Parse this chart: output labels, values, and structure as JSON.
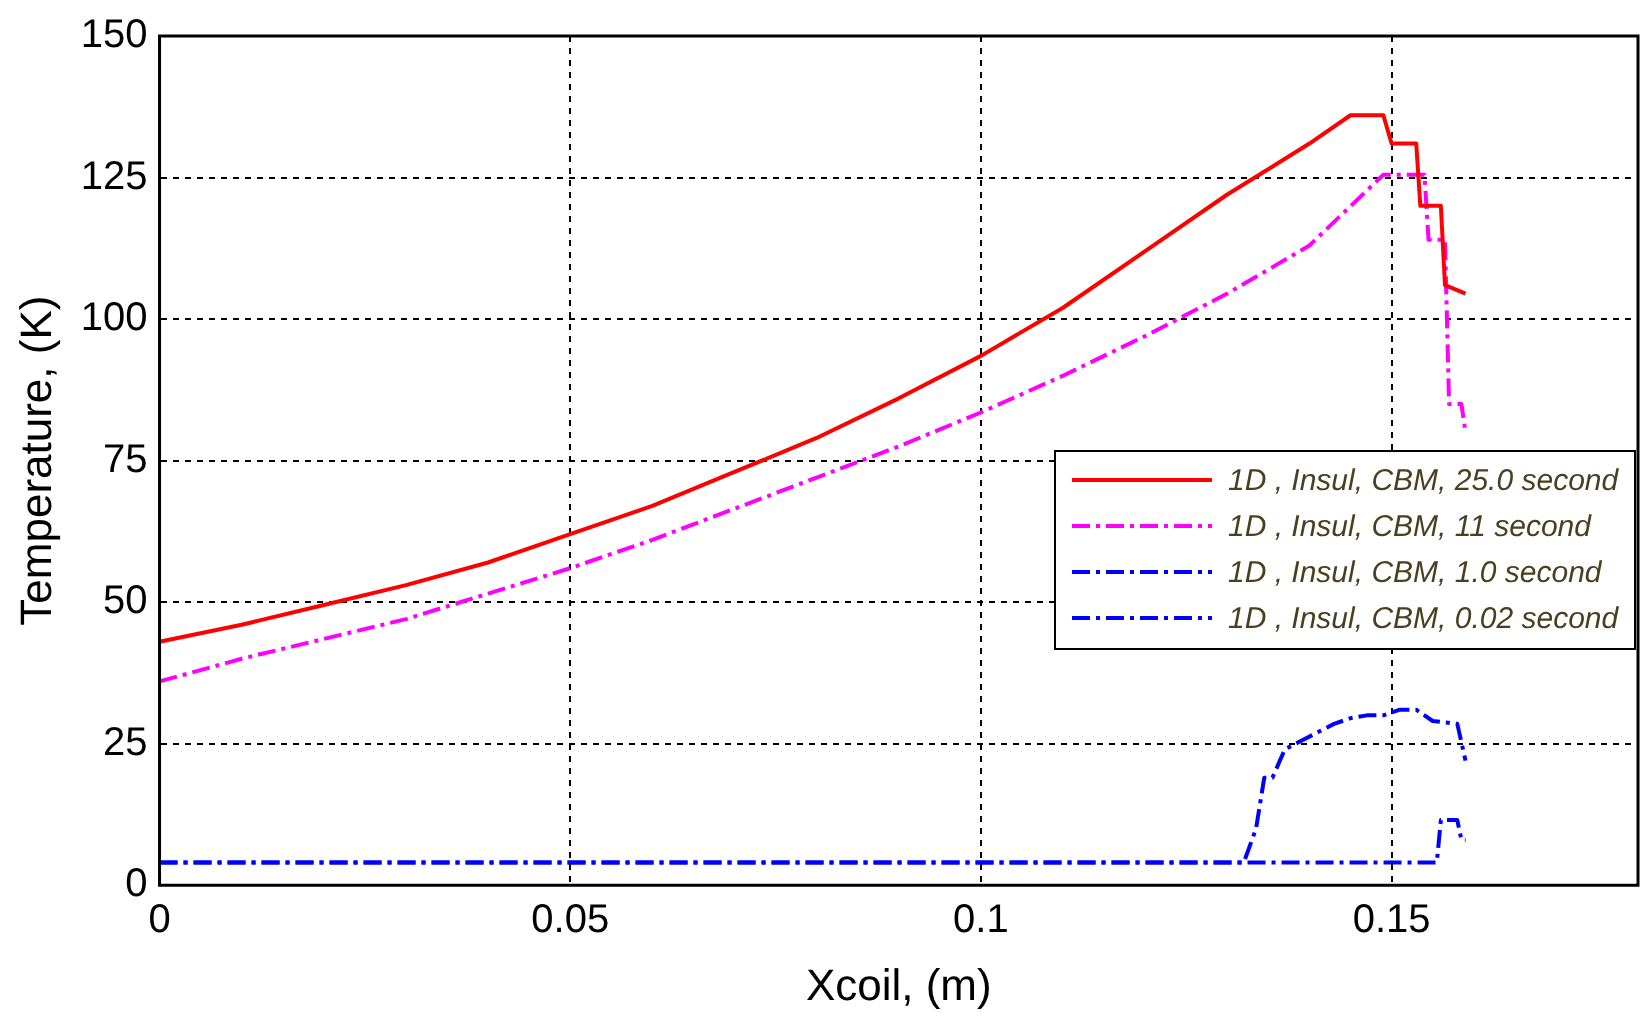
{
  "chart_data": {
    "type": "line",
    "xlabel": "Xcoil, (m)",
    "ylabel": "Temperature, (K)",
    "xlim": [
      0,
      0.18
    ],
    "xticks": [
      0,
      0.05,
      0.1,
      0.15
    ],
    "ylim": [
      0,
      150
    ],
    "yticks": [
      0,
      25,
      50,
      75,
      100,
      125,
      150
    ],
    "grid": true,
    "legend": "right",
    "marker": "none",
    "series": [
      {
        "name": "1D , Insul, CBM, 25.0 second",
        "color": "#ff0000",
        "line_style": "solid",
        "x": [
          0,
          0.01,
          0.02,
          0.03,
          0.04,
          0.05,
          0.06,
          0.07,
          0.08,
          0.09,
          0.1,
          0.11,
          0.12,
          0.13,
          0.14,
          0.145,
          0.149,
          0.15,
          0.153,
          0.1535,
          0.156,
          0.1565,
          0.159
        ],
        "values": [
          43,
          46,
          49.5,
          53,
          57,
          62,
          67,
          73,
          79,
          86,
          93.5,
          102,
          112,
          122,
          131,
          136,
          136,
          131,
          131,
          120,
          120,
          106,
          104.5
        ]
      },
      {
        "name": "1D , Insul, CBM, 11 second",
        "color": "#ff00ff",
        "line_style": "dashed",
        "x": [
          0,
          0.01,
          0.02,
          0.03,
          0.04,
          0.05,
          0.06,
          0.07,
          0.08,
          0.09,
          0.1,
          0.11,
          0.12,
          0.13,
          0.14,
          0.149,
          0.152,
          0.154,
          0.1545,
          0.1565,
          0.157,
          0.1585,
          0.159
        ],
        "values": [
          36,
          40,
          43.5,
          47,
          51.5,
          56,
          61,
          66.5,
          72,
          77.5,
          83.5,
          90,
          97,
          104.5,
          113,
          125.5,
          125.5,
          125.5,
          114,
          114,
          85,
          85,
          80
        ]
      },
      {
        "name": "1D , Insul, CBM, 1.0 second",
        "color": "#0000ff",
        "line_style": "dashed",
        "x": [
          0,
          0.132,
          0.1335,
          0.1345,
          0.1355,
          0.137,
          0.139,
          0.141,
          0.143,
          0.145,
          0.147,
          0.149,
          0.151,
          0.153,
          0.155,
          0.158,
          0.159
        ],
        "values": [
          4,
          4,
          10,
          19,
          19,
          24,
          25.5,
          27,
          28.5,
          29.5,
          30,
          30,
          31,
          31,
          29,
          28.5,
          22
        ]
      },
      {
        "name": "1D , Insul, CBM, 0.02 second",
        "color": "#0000ff",
        "line_style": "dashed",
        "x": [
          0,
          0.1555,
          0.156,
          0.158,
          0.1585,
          0.159
        ],
        "values": [
          4,
          4,
          11.5,
          11.5,
          8,
          8
        ]
      }
    ]
  }
}
